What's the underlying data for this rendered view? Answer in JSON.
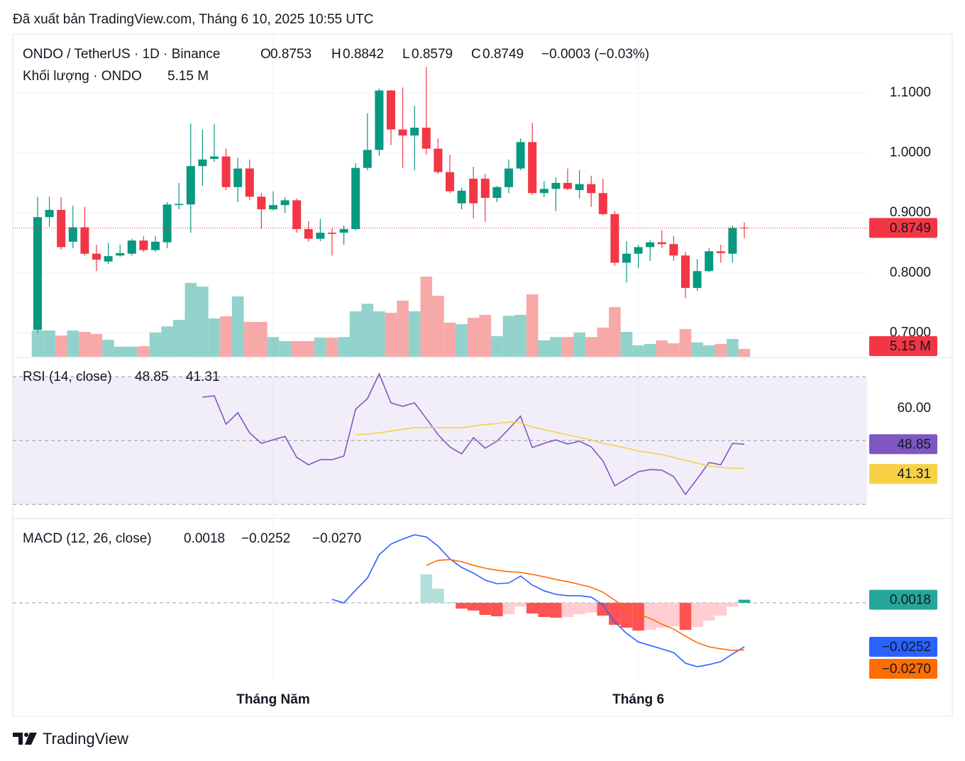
{
  "header": {
    "published": "Đã xuất bản TradingView.com, Tháng 6 10, 2025 10:55 UTC"
  },
  "footer": {
    "brand": "TradingView"
  },
  "chart_data": [
    {
      "type": "candlestick",
      "title": "ONDO / TetherUS · 1D · Binance",
      "ohlc_letters": [
        "O",
        "H",
        "L",
        "C"
      ],
      "change_label": "−0.0003 (−0.03%)",
      "categories": [
        null,
        null,
        null,
        null,
        null,
        null,
        null,
        null,
        null,
        null,
        null,
        null,
        null,
        null,
        null,
        null,
        null,
        null,
        null,
        null,
        "Tháng Năm",
        null,
        null,
        null,
        null,
        null,
        null,
        null,
        null,
        null,
        null,
        null,
        null,
        null,
        null,
        null,
        null,
        null,
        null,
        null,
        null,
        null,
        null,
        null,
        null,
        null,
        null,
        null,
        null,
        null,
        null,
        "Tháng 6",
        null,
        null,
        null,
        null,
        null,
        null,
        null,
        null,
        null
      ],
      "open": [
        0.705,
        0.893,
        0.905,
        0.852,
        0.876,
        0.832,
        0.819,
        0.829,
        0.832,
        0.854,
        0.838,
        0.851,
        0.913,
        0.914,
        0.978,
        0.99,
        0.994,
        0.943,
        0.974,
        0.927,
        0.906,
        0.913,
        0.921,
        0.873,
        0.857,
        0.867,
        0.867,
        0.873,
        0.975,
        1.005,
        1.104,
        1.039,
        1.029,
        1.042,
        1.007,
        0.968,
        0.916,
        0.957,
        0.957,
        0.925,
        0.943,
        0.974,
        1.018,
        0.933,
        0.94,
        0.95,
        0.938,
        0.948,
        0.933,
        0.898,
        0.817,
        0.832,
        0.843,
        0.851,
        0.848,
        0.829,
        0.775,
        0.803,
        0.836,
        0.832,
        0.8753
      ],
      "high": [
        0.927,
        0.927,
        0.926,
        0.912,
        0.91,
        0.847,
        0.85,
        0.847,
        0.857,
        0.861,
        0.861,
        0.918,
        0.95,
        1.049,
        1.039,
        1.048,
        1.007,
        0.992,
        0.989,
        0.933,
        0.936,
        0.926,
        0.924,
        0.886,
        0.89,
        0.874,
        0.879,
        0.983,
        1.066,
        1.107,
        1.105,
        1.109,
        1.078,
        1.143,
        1.024,
        0.997,
        0.942,
        0.977,
        0.965,
        0.945,
        0.989,
        1.024,
        1.05,
        0.953,
        0.959,
        0.974,
        0.971,
        0.962,
        0.957,
        0.903,
        0.853,
        0.847,
        0.855,
        0.871,
        0.862,
        0.835,
        0.823,
        0.841,
        0.847,
        0.879,
        0.8842
      ],
      "low": [
        0.7,
        0.877,
        0.839,
        0.841,
        0.829,
        0.803,
        0.815,
        0.827,
        0.829,
        0.835,
        0.835,
        0.841,
        0.906,
        0.867,
        0.945,
        0.985,
        0.938,
        0.918,
        0.921,
        0.874,
        0.904,
        0.9,
        0.867,
        0.852,
        0.853,
        0.829,
        0.847,
        0.871,
        0.971,
        0.995,
        1.013,
        0.975,
        0.971,
        0.997,
        0.965,
        0.933,
        0.906,
        0.891,
        0.885,
        0.918,
        0.933,
        0.971,
        0.93,
        0.926,
        0.903,
        0.938,
        0.924,
        0.91,
        0.896,
        0.812,
        0.784,
        0.808,
        0.82,
        0.841,
        0.82,
        0.758,
        0.77,
        0.801,
        0.817,
        0.817,
        0.8579
      ],
      "close": [
        0.893,
        0.905,
        0.843,
        0.876,
        0.832,
        0.822,
        0.828,
        0.833,
        0.854,
        0.838,
        0.852,
        0.914,
        0.915,
        0.978,
        0.989,
        0.994,
        0.943,
        0.974,
        0.927,
        0.906,
        0.913,
        0.921,
        0.873,
        0.857,
        0.867,
        0.865,
        0.873,
        0.975,
        1.005,
        1.104,
        1.039,
        1.029,
        1.042,
        1.007,
        0.968,
        0.936,
        0.937,
        0.916,
        0.925,
        0.943,
        0.974,
        1.018,
        0.933,
        0.94,
        0.95,
        0.94,
        0.948,
        0.933,
        0.898,
        0.817,
        0.832,
        0.843,
        0.851,
        0.848,
        0.829,
        0.775,
        0.803,
        0.836,
        0.833,
        0.875,
        0.8749
      ],
      "up_color": "#089981",
      "down_color": "#f23645",
      "ylim": [
        0.6603,
        1.1957
      ],
      "yticks": [
        {
          "value": 0.7,
          "label": "0.7000"
        },
        {
          "value": 0.8,
          "label": "0.8000"
        },
        {
          "value": 0.9,
          "label": "0.9000"
        },
        {
          "value": 1.0,
          "label": "1.0000"
        },
        {
          "value": 1.1,
          "label": "1.1000"
        }
      ],
      "grid": true,
      "price_line": true,
      "volume": {
        "title": "Khối lượng · ONDO",
        "values": [
          17.3,
          17.3,
          14,
          17.3,
          16.4,
          15,
          11.2,
          6.6,
          6.6,
          7,
          16,
          20,
          24.3,
          48.7,
          46.3,
          25.3,
          26.7,
          39.8,
          23,
          23,
          13,
          10.3,
          10.3,
          10.3,
          12.6,
          12.6,
          13,
          30,
          35,
          30,
          29,
          37,
          30,
          52.9,
          40.2,
          22.5,
          21.5,
          25.7,
          27.6,
          13.6,
          27,
          27.6,
          41.2,
          10.8,
          13,
          13,
          16,
          13,
          19.2,
          32.8,
          16.4,
          7.5,
          8.4,
          10.8,
          8.9,
          18.3,
          9.4,
          7.5,
          8.4,
          11.7,
          5.15
        ],
        "value_labels": [
          null,
          null,
          null,
          null,
          null,
          null,
          null,
          null,
          null,
          null,
          null,
          null,
          null,
          null,
          null,
          null,
          null,
          null,
          null,
          null,
          null,
          null,
          null,
          null,
          null,
          null,
          null,
          null,
          null,
          null,
          null,
          null,
          null,
          null,
          null,
          null,
          null,
          null,
          null,
          null,
          null,
          null,
          null,
          null,
          null,
          null,
          null,
          null,
          null,
          null,
          null,
          null,
          null,
          null,
          null,
          null,
          null,
          null,
          null,
          null,
          "5.15 M"
        ],
        "ylim": [
          0,
          212
        ],
        "up_color": "#92d2cc",
        "down_color": "#f7a9a7"
      }
    },
    {
      "type": "line",
      "title": "RSI (14, close)",
      "series": [
        {
          "color": "#7e57c2",
          "values": [
            null,
            null,
            null,
            null,
            null,
            null,
            null,
            null,
            null,
            null,
            null,
            null,
            null,
            null,
            63.6,
            64,
            55.1,
            58.7,
            52.4,
            49.1,
            50.2,
            51.3,
            44.7,
            42.4,
            44,
            44,
            45.1,
            59.8,
            63.1,
            70.9,
            61.8,
            60.7,
            61.8,
            56.9,
            51.8,
            48,
            45.8,
            50.9,
            47.6,
            49.8,
            53.6,
            57.6,
            47.8,
            49.1,
            50.2,
            48.9,
            49.8,
            48,
            43.6,
            35.8,
            38,
            40.2,
            40.9,
            40.7,
            38.7,
            33.1,
            38,
            43.1,
            42.4,
            49.1,
            48.85
          ]
        },
        {
          "color": "#f7d046",
          "values": [
            null,
            null,
            null,
            null,
            null,
            null,
            null,
            null,
            null,
            null,
            null,
            null,
            null,
            null,
            null,
            null,
            null,
            null,
            null,
            null,
            null,
            null,
            null,
            null,
            null,
            null,
            null,
            51.8,
            52,
            52.4,
            53,
            53.5,
            54,
            54,
            54,
            54,
            54,
            54.5,
            55,
            55.3,
            55.8,
            55.6,
            54.2,
            53.4,
            52.6,
            51.8,
            51,
            50.2,
            49.1,
            48.4,
            47.6,
            46.7,
            46.2,
            45.6,
            44.7,
            43.8,
            42.9,
            42,
            41.6,
            41.3,
            41.31
          ]
        }
      ],
      "ylim": [
        25.8,
        75.8
      ],
      "yticks": [
        {
          "value": 60,
          "label": "60.00"
        }
      ],
      "grid": true,
      "band": [
        30,
        70
      ],
      "band_color": "#7e57c2",
      "levels": [
        30,
        50,
        70
      ]
    },
    {
      "type": "macd",
      "title": "MACD (12, 26, close)",
      "histogram": {
        "values": [
          null,
          null,
          null,
          null,
          null,
          null,
          null,
          null,
          null,
          null,
          null,
          null,
          null,
          null,
          null,
          null,
          null,
          null,
          null,
          null,
          null,
          null,
          null,
          null,
          null,
          null,
          null,
          null,
          null,
          null,
          null,
          null,
          null,
          0.0163,
          0.0081,
          0.0004,
          -0.0033,
          -0.0044,
          -0.0069,
          -0.0077,
          -0.0065,
          -0.0021,
          -0.0061,
          -0.0081,
          -0.0085,
          -0.0081,
          -0.0065,
          -0.0056,
          -0.0073,
          -0.0126,
          -0.0142,
          -0.0159,
          -0.0155,
          -0.0142,
          -0.0135,
          -0.0155,
          -0.0138,
          -0.0102,
          -0.0073,
          -0.0021,
          0.0018
        ],
        "colors": [
          "#26a69a",
          "#b2dfdb",
          "#ff5252",
          "#ffcdd2"
        ]
      },
      "series": [
        {
          "color": "#2962ff",
          "values": [
            null,
            null,
            null,
            null,
            null,
            null,
            null,
            null,
            null,
            null,
            null,
            null,
            null,
            null,
            null,
            null,
            null,
            null,
            null,
            null,
            null,
            null,
            null,
            null,
            null,
            0.002,
            0,
            0.0073,
            0.0142,
            0.0276,
            0.0337,
            0.0366,
            0.039,
            0.0378,
            0.0325,
            0.0252,
            0.0203,
            0.0171,
            0.013,
            0.011,
            0.0114,
            0.0154,
            0.0102,
            0.0069,
            0.0049,
            0.0041,
            0.0041,
            0.0033,
            -0.0012,
            -0.011,
            -0.0175,
            -0.0224,
            -0.0244,
            -0.0264,
            -0.0285,
            -0.0346,
            -0.0366,
            -0.0354,
            -0.0337,
            -0.0293,
            -0.0252
          ],
          "value_labels": [
            null,
            null,
            null,
            null,
            null,
            null,
            null,
            null,
            null,
            null,
            null,
            null,
            null,
            null,
            null,
            null,
            null,
            null,
            null,
            null,
            null,
            null,
            null,
            null,
            null,
            null,
            null,
            null,
            null,
            null,
            null,
            null,
            null,
            null,
            null,
            null,
            null,
            null,
            null,
            null,
            null,
            null,
            null,
            null,
            null,
            null,
            null,
            null,
            null,
            null,
            null,
            null,
            null,
            null,
            null,
            null,
            null,
            null,
            null,
            null,
            "−0.0252"
          ]
        },
        {
          "color": "#ff6d00",
          "values": [
            null,
            null,
            null,
            null,
            null,
            null,
            null,
            null,
            null,
            null,
            null,
            null,
            null,
            null,
            null,
            null,
            null,
            null,
            null,
            null,
            null,
            null,
            null,
            null,
            null,
            null,
            null,
            null,
            null,
            null,
            null,
            null,
            null,
            0.0215,
            0.0244,
            0.0248,
            0.0236,
            0.0215,
            0.0199,
            0.0187,
            0.0179,
            0.0175,
            0.0163,
            0.015,
            0.0134,
            0.0122,
            0.0106,
            0.0089,
            0.0061,
            0.0016,
            -0.0033,
            -0.0065,
            -0.0089,
            -0.0122,
            -0.015,
            -0.0191,
            -0.0228,
            -0.0252,
            -0.0264,
            -0.0272,
            -0.027
          ],
          "value_labels": [
            null,
            null,
            null,
            null,
            null,
            null,
            null,
            null,
            null,
            null,
            null,
            null,
            null,
            null,
            null,
            null,
            null,
            null,
            null,
            null,
            null,
            null,
            null,
            null,
            null,
            null,
            null,
            null,
            null,
            null,
            null,
            null,
            null,
            null,
            null,
            null,
            null,
            null,
            null,
            null,
            null,
            null,
            null,
            null,
            null,
            null,
            null,
            null,
            null,
            null,
            null,
            null,
            null,
            null,
            null,
            null,
            null,
            null,
            null,
            null,
            "−0.0270"
          ]
        }
      ],
      "ylim": [
        -0.0439,
        0.048
      ],
      "zero_line": true
    }
  ]
}
